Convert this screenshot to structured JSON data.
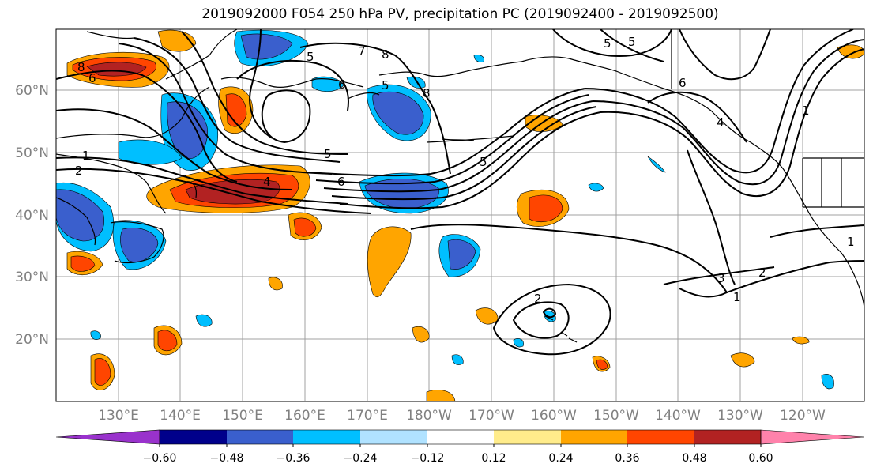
{
  "title": "2019092000 F054 250 hPa PV, precipitation PC (2019092400 - 2019092500)",
  "map": {
    "lat_labels": [
      "60°N",
      "50°N",
      "40°N",
      "30°N",
      "20°N"
    ],
    "lon_labels": [
      "130°E",
      "140°E",
      "150°E",
      "160°E",
      "170°E",
      "180°W",
      "170°W",
      "160°W",
      "150°W",
      "140°W",
      "130°W",
      "120°W"
    ],
    "contour_labels": [
      "8",
      "6",
      "5",
      "6",
      "1",
      "8",
      "7",
      "5",
      "5",
      "8",
      "4",
      "1",
      "2",
      "4",
      "6",
      "5",
      "5",
      "6",
      "5",
      "2",
      "1",
      "1",
      "3",
      "2"
    ]
  },
  "colorbar": {
    "ticks": [
      "−0.60",
      "−0.48",
      "−0.36",
      "−0.24",
      "−0.12",
      "0.12",
      "0.24",
      "0.36",
      "0.48",
      "0.60"
    ],
    "colors": [
      "#9932cc",
      "#00008b",
      "#3a5fcd",
      "#00bfff",
      "#b0e2ff",
      "#ffffff",
      "#ffec8b",
      "#ffa500",
      "#ff4500",
      "#b22222",
      "#ff82ab"
    ]
  }
}
